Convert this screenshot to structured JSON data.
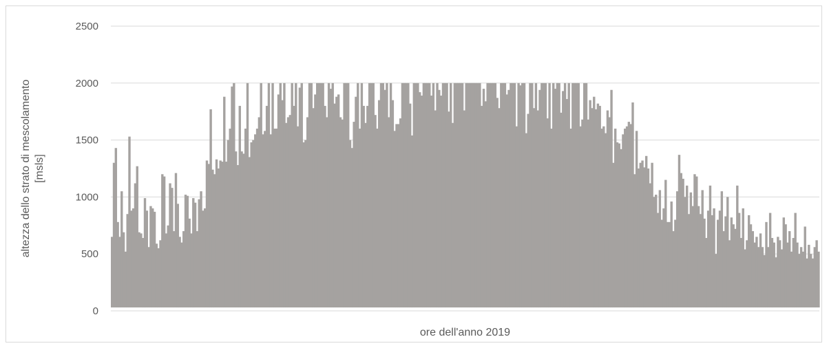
{
  "chart_data": {
    "type": "line",
    "title": "",
    "xlabel": "ore dell'anno 2019",
    "ylabel_line1": "altezza dello strato di mescolamento",
    "ylabel_line2": "[msls]",
    "ylim": [
      0,
      2500
    ],
    "yticks": [
      "0",
      "500",
      "1000",
      "1500",
      "2000",
      "2500"
    ],
    "xlim": [
      1,
      8760
    ],
    "grid": true,
    "legend": "none",
    "series_color": "#a5a2a0",
    "series": [
      {
        "sampling": "daily maximum of the hourly series (one value per day, 365 days); hourly minimum ≈ 30",
        "daily_min": 30,
        "values": [
          650,
          1300,
          1430,
          780,
          650,
          1050,
          690,
          520,
          850,
          1530,
          880,
          900,
          1120,
          1270,
          690,
          680,
          640,
          990,
          880,
          560,
          920,
          900,
          870,
          590,
          550,
          620,
          1200,
          1180,
          680,
          750,
          1120,
          1080,
          700,
          1210,
          940,
          650,
          600,
          700,
          1020,
          1010,
          810,
          680,
          990,
          950,
          700,
          980,
          1050,
          880,
          900,
          1320,
          1290,
          1770,
          1240,
          1200,
          1330,
          1250,
          1320,
          1310,
          1880,
          1310,
          1500,
          1600,
          1970,
          2000,
          1400,
          1280,
          1800,
          1400,
          1380,
          1600,
          2000,
          1350,
          1480,
          1500,
          1550,
          1600,
          1700,
          2000,
          1550,
          1580,
          1800,
          2000,
          1550,
          2000,
          1600,
          1600,
          1900,
          2000,
          1850,
          2000,
          1650,
          1700,
          1720,
          2000,
          1800,
          2000,
          1620,
          1960,
          2000,
          1480,
          1500,
          1700,
          2000,
          2000,
          1780,
          1900,
          2000,
          2000,
          2000,
          2000,
          1800,
          1700,
          2000,
          1950,
          2000,
          1820,
          1880,
          1900,
          1700,
          1680,
          2000,
          2000,
          2000,
          1500,
          1430,
          1660,
          1880,
          2000,
          1600,
          2000,
          1800,
          1650,
          1800,
          2000,
          2000,
          2000,
          1720,
          1600,
          1850,
          2000,
          2000,
          1940,
          2000,
          1700,
          2000,
          1850,
          1580,
          1640,
          1640,
          1690,
          2000,
          2000,
          2000,
          2000,
          1820,
          1540,
          2000,
          2000,
          2000,
          1920,
          1890,
          2000,
          2000,
          2000,
          2000,
          1890,
          2000,
          1760,
          2000,
          1940,
          1890,
          2000,
          2000,
          2000,
          1750,
          2000,
          1650,
          2000,
          2000,
          2000,
          2000,
          2000,
          1760,
          2000,
          2000,
          2000,
          2000,
          2000,
          2000,
          2000,
          2000,
          1800,
          1950,
          1840,
          2000,
          2000,
          2000,
          2000,
          2000,
          1870,
          1780,
          2000,
          2000,
          2000,
          1900,
          1940,
          2000,
          2000,
          2000,
          1620,
          2000,
          1980,
          2000,
          2000,
          1560,
          1730,
          2000,
          2000,
          1780,
          2000,
          1760,
          1940,
          2000,
          2000,
          2000,
          1690,
          2000,
          1600,
          2000,
          1950,
          2000,
          2000,
          1740,
          1930,
          2000,
          1860,
          2000,
          1600,
          2000,
          2000,
          2000,
          2000,
          1620,
          1680,
          2000,
          2000,
          1680,
          1850,
          1780,
          1880,
          1770,
          1820,
          1800,
          1600,
          1620,
          1560,
          1760,
          1700,
          1940,
          1300,
          1600,
          1480,
          1470,
          1420,
          1550,
          1600,
          1620,
          1660,
          1640,
          1830,
          1200,
          1580,
          1250,
          1300,
          1320,
          1260,
          1360,
          1250,
          1120,
          1300,
          1000,
          1020,
          860,
          1060,
          800,
          900,
          1150,
          780,
          780,
          960,
          700,
          800,
          1050,
          1370,
          1210,
          1160,
          1000,
          1100,
          850,
          1040,
          920,
          1200,
          1180,
          920,
          850,
          1060,
          810,
          640,
          880,
          1100,
          840,
          900,
          500,
          800,
          880,
          1050,
          700,
          830,
          1000,
          620,
          820,
          760,
          720,
          1100,
          860,
          640,
          900,
          540,
          620,
          840,
          760,
          700,
          600,
          650,
          560,
          680,
          560,
          490,
          780,
          560,
          860,
          640,
          600,
          470,
          650,
          620,
          540,
          820,
          760,
          600,
          700,
          520,
          640,
          860,
          600,
          500,
          560,
          520,
          740,
          460,
          580,
          500,
          460,
          560,
          620,
          520
        ]
      }
    ]
  }
}
